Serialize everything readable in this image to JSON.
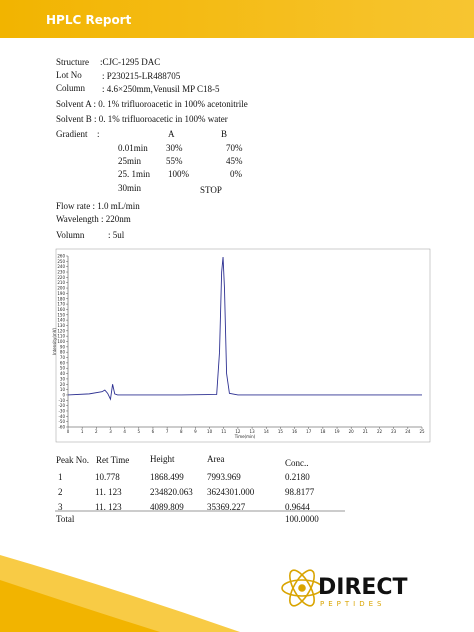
{
  "header": {
    "title": "HPLC Report"
  },
  "info": {
    "structure_label": "Structure",
    "structure_value": ":CJC-1295 DAC",
    "lot_label": "Lot No",
    "lot_value": ": P230215-LR488705",
    "column_label": "Column",
    "column_value": ": 4.6×250mm,Venusil MP C18-5",
    "solvent_a": "Solvent A : 0. 1% trifluoroacetic in 100% acetonitrile",
    "solvent_b": "Solvent B : 0. 1% trifluoroacetic in 100% water",
    "gradient_label": "Gradient",
    "gradient_colon": ":",
    "col_a": "A",
    "col_b": "B",
    "gradient_rows": [
      [
        "0.01min",
        "30%",
        "70%"
      ],
      [
        "25min",
        "55%",
        "45%"
      ],
      [
        "25. 1min",
        "100%",
        "0%"
      ],
      [
        "30min",
        "STOP"
      ]
    ],
    "flow_rate": "Flow rate   : 1.0 mL/min",
    "wavelength": "Wavelength : 220nm",
    "volume_label": "Volumn",
    "volume_value": ": 5ul"
  },
  "chromatogram": {
    "type": "line",
    "x_label": "Time(min)",
    "y_label": "Intensity(mV)",
    "color": "#2e3192",
    "xlim": [
      0,
      25
    ],
    "xticks": [
      0,
      1,
      2,
      3,
      4,
      5,
      6,
      7,
      8,
      9,
      10,
      11,
      12,
      13,
      14,
      15,
      16,
      17,
      18,
      19,
      20,
      21,
      22,
      23,
      24,
      25
    ],
    "ylim": [
      -60,
      260
    ],
    "yticks": [
      -60,
      -50,
      -40,
      -30,
      -20,
      -10,
      0,
      10,
      20,
      30,
      40,
      50,
      60,
      70,
      80,
      90,
      100,
      110,
      120,
      130,
      140,
      150,
      160,
      170,
      180,
      190,
      200,
      210,
      220,
      230,
      240,
      250,
      260
    ],
    "x": [
      0,
      1.5,
      2.4,
      2.6,
      2.8,
      3.0,
      3.15,
      3.3,
      3.5,
      4,
      8,
      10.5,
      10.7,
      10.85,
      10.95,
      11.05,
      11.2,
      11.4,
      12,
      25
    ],
    "y": [
      0,
      2,
      6,
      9,
      3,
      -8,
      20,
      2,
      0,
      0,
      0,
      1,
      80,
      230,
      258,
      200,
      40,
      3,
      0,
      0
    ]
  },
  "table": {
    "header": [
      "Peak No.",
      "Ret Time",
      "Height",
      "Area",
      "Conc.."
    ],
    "rows": [
      [
        "1",
        "10.778",
        "1868.499",
        "7993.969",
        "0.2180"
      ],
      [
        "2",
        "11. 123",
        "234820.063",
        "3624301.000",
        "98.8177"
      ],
      [
        "3",
        "11. 123",
        "4089.809",
        "35369.227",
        "0.9644"
      ]
    ],
    "total_label": "Total",
    "total_value": "100.0000"
  },
  "logo": {
    "name": "DIRECT",
    "tagline": "PEPTIDES"
  }
}
